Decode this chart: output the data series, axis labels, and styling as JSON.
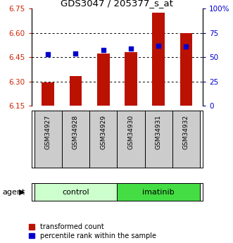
{
  "title": "GDS3047 / 205377_s_at",
  "samples": [
    "GSM34927",
    "GSM34928",
    "GSM34929",
    "GSM34930",
    "GSM34931",
    "GSM34932"
  ],
  "red_values": [
    6.295,
    6.335,
    6.47,
    6.48,
    6.725,
    6.6
  ],
  "blue_pct": [
    53,
    54,
    57,
    59,
    62,
    61
  ],
  "ylim_left": [
    6.15,
    6.75
  ],
  "ylim_right": [
    0,
    100
  ],
  "yticks_left": [
    6.15,
    6.3,
    6.45,
    6.6,
    6.75
  ],
  "yticks_right": [
    0,
    25,
    50,
    75,
    100
  ],
  "ytick_labels_right": [
    "0",
    "25",
    "50",
    "75",
    "100%"
  ],
  "grid_values": [
    6.3,
    6.45,
    6.6
  ],
  "bar_color": "#bb1100",
  "dot_color": "#0000cc",
  "xlabels_bg": "#cccccc",
  "control_color": "#ccffcc",
  "imatinib_color": "#44dd44",
  "legend_red": "transformed count",
  "legend_blue": "percentile rank within the sample",
  "bar_width": 0.45,
  "left_tick_color": "#cc2200",
  "right_tick_color": "#0000cc",
  "title_fontsize": 9.5
}
